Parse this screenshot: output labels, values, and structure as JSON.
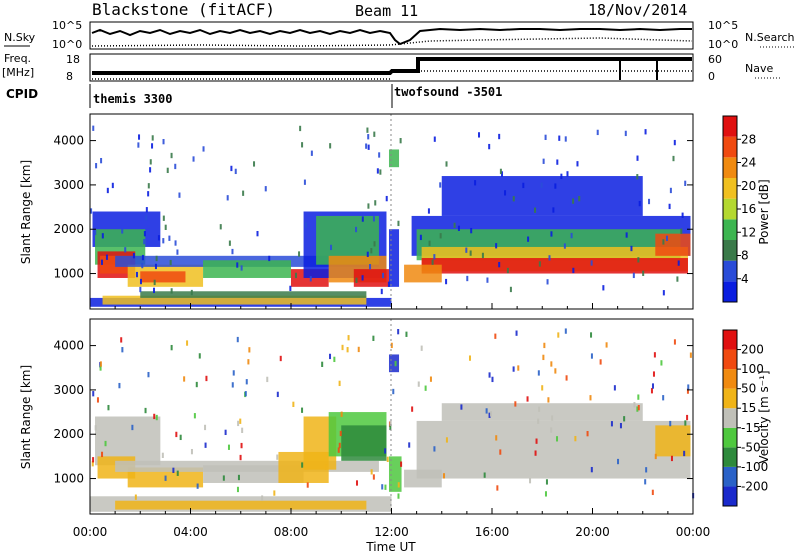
{
  "header": {
    "radar": "Blackstone (fitACF)",
    "beam": "Beam 11",
    "date": "18/Nov/2014"
  },
  "nsky_panel": {
    "left_label": "N.Sky",
    "right_label": "N.Search",
    "ticks": [
      "10^5",
      "10^0"
    ]
  },
  "freq_panel": {
    "label_line1": "Freq.",
    "label_line2": "[MHz]",
    "left_ticks": [
      "18",
      "8"
    ],
    "right_label": "Nave",
    "right_ticks": [
      "60",
      "0"
    ]
  },
  "cpid_panel": {
    "label": "CPID",
    "programs": [
      {
        "name": "themis 3300",
        "start_hour": 0
      },
      {
        "name": "twofsound -3501",
        "start_hour": 12.2
      }
    ]
  },
  "chart_data": [
    {
      "type": "heatmap",
      "name": "power",
      "ylabel": "Slant Range [km]",
      "yticks": [
        1000,
        2000,
        3000,
        4000
      ],
      "ylim": [
        200,
        4600
      ],
      "xlim_hours": [
        0,
        24
      ],
      "colorbar": {
        "label": "Power [dB]",
        "ticks": [
          "28",
          "24",
          "20",
          "16",
          "12",
          "8",
          "4"
        ],
        "colors": [
          "#0a1ee0",
          "#2a4cd8",
          "#3a7a4a",
          "#3cb550",
          "#b4d830",
          "#f0c020",
          "#f08a10",
          "#f04a10",
          "#e01010"
        ]
      }
    },
    {
      "type": "heatmap",
      "name": "velocity",
      "ylabel": "Slant Range [km]",
      "yticks": [
        1000,
        2000,
        3000,
        4000
      ],
      "ylim": [
        200,
        4600
      ],
      "xlim_hours": [
        0,
        24
      ],
      "xlabel": "Time UT",
      "xticks": [
        "00:00",
        "04:00",
        "08:00",
        "12:00",
        "16:00",
        "20:00",
        "00:00"
      ],
      "colorbar": {
        "label": "Velocity [m s⁻¹]",
        "ticks": [
          "200",
          "100",
          "50",
          "15",
          "-15",
          "-50",
          "-100",
          "-200"
        ],
        "colors": [
          "#1a2acc",
          "#2a62c8",
          "#2e8a3c",
          "#4ec83e",
          "#c0c0b8",
          "#f0b418",
          "#f08a10",
          "#f04a10",
          "#e01010"
        ]
      }
    }
  ]
}
